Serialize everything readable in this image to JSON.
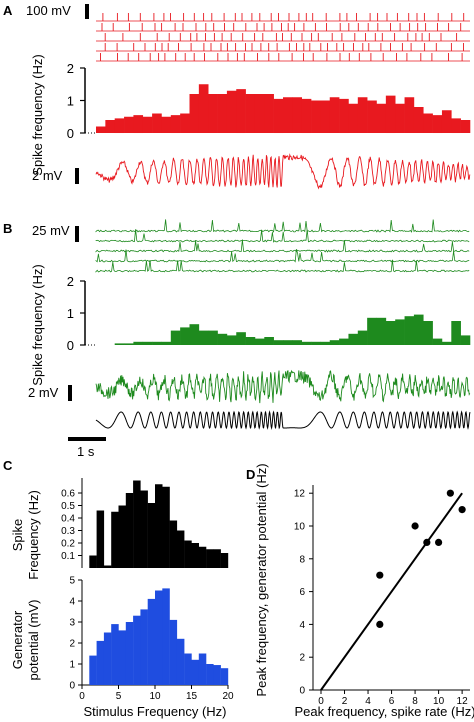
{
  "panel_labels": [
    "A",
    "B",
    "C",
    "D"
  ],
  "chart_data": [
    {
      "panel": "A",
      "type": "bar",
      "scale_bar_top": "100 mV",
      "scale_bar_bottom": "2 mV",
      "ylabel": "Spike frequency (Hz)",
      "yticks": [
        "0",
        "1",
        "2"
      ],
      "ylim": [
        0,
        2
      ],
      "color": "#e8191f",
      "values": [
        0.2,
        0.4,
        0.45,
        0.5,
        0.55,
        0.5,
        0.6,
        0.5,
        0.55,
        0.6,
        1.2,
        1.5,
        1.2,
        1.2,
        1.3,
        1.35,
        1.2,
        1.2,
        1.2,
        1.05,
        1.1,
        1.1,
        1.05,
        1.0,
        1.0,
        1.1,
        1.05,
        0.9,
        1.1,
        1.0,
        0.9,
        1.15,
        0.9,
        1.1,
        0.8,
        0.6,
        0.55,
        0.7,
        0.45,
        0.4
      ]
    },
    {
      "panel": "B",
      "type": "bar",
      "scale_bar_top": "25 mV",
      "scale_bar_bottom": "2 mV",
      "ylabel": "Spike frequency (Hz)",
      "yticks": [
        "0",
        "1",
        "2"
      ],
      "ylim": [
        0,
        2
      ],
      "color": "#1e8a1e",
      "values": [
        0,
        0,
        0.05,
        0.05,
        0.1,
        0.1,
        0.1,
        0.1,
        0.45,
        0.55,
        0.65,
        0.45,
        0.45,
        0.35,
        0.3,
        0.4,
        0.25,
        0.2,
        0.25,
        0.15,
        0.15,
        0.15,
        0.1,
        0.1,
        0.1,
        0.15,
        0.2,
        0.35,
        0.45,
        0.85,
        0.85,
        0.75,
        0.8,
        0.9,
        0.95,
        0.75,
        0.2,
        0.1,
        0.75,
        0.3
      ],
      "time_scale_bar": "1 s"
    },
    {
      "panel": "C-top",
      "type": "bar",
      "color": "#000000",
      "ylabel": "Spike Frequency (Hz)",
      "yticks": [
        "0.1",
        "0.2",
        "0.3",
        "0.4",
        "0.5",
        "0.6"
      ],
      "ylim": [
        0,
        0.72
      ],
      "xlim": [
        0,
        20
      ],
      "x": [
        1.5,
        2.5,
        3.5,
        4.5,
        5.5,
        6.5,
        7.5,
        8.5,
        9.5,
        10.5,
        11.5,
        12.5,
        13.5,
        14.5,
        15.5,
        16.5,
        17.5,
        18.5,
        19.5
      ],
      "values": [
        0.1,
        0.46,
        0.02,
        0.45,
        0.5,
        0.6,
        0.7,
        0.62,
        0.52,
        0.67,
        0.65,
        0.38,
        0.3,
        0.22,
        0.2,
        0.17,
        0.15,
        0.15,
        0.12
      ]
    },
    {
      "panel": "C-bottom",
      "type": "bar",
      "color": "#1f4de0",
      "ylabel": "Generator potential (mV)",
      "xlabel": "Stimulus Frequency (Hz)",
      "yticks": [
        "0",
        "1",
        "2",
        "3",
        "4",
        "5"
      ],
      "xticks": [
        "0",
        "5",
        "10",
        "15",
        "20"
      ],
      "ylim": [
        0,
        5
      ],
      "xlim": [
        0,
        20
      ],
      "x": [
        1.5,
        2.5,
        3.5,
        4.5,
        5.5,
        6.5,
        7.5,
        8.5,
        9.5,
        10.5,
        11.5,
        12.5,
        13.5,
        14.5,
        15.5,
        16.5,
        17.5,
        18.5,
        19.5
      ],
      "values": [
        1.4,
        2.1,
        2.5,
        2.9,
        2.6,
        3.0,
        3.3,
        3.6,
        4.1,
        4.5,
        4.6,
        3.1,
        2.2,
        1.5,
        1.2,
        1.5,
        1.0,
        0.95,
        0.8
      ]
    },
    {
      "panel": "D",
      "type": "scatter",
      "xlabel": "Peak frequency, spike rate (Hz)",
      "ylabel": "Peak frequency, generator potential (Hz)",
      "xticks": [
        "0",
        "2",
        "4",
        "6",
        "8",
        "10",
        "12"
      ],
      "yticks": [
        "0",
        "2",
        "4",
        "6",
        "8",
        "10",
        "12"
      ],
      "xlim": [
        0,
        12.5
      ],
      "ylim": [
        0,
        12.5
      ],
      "points": [
        [
          5,
          7
        ],
        [
          5,
          4
        ],
        [
          8,
          10
        ],
        [
          9,
          9
        ],
        [
          10,
          9
        ],
        [
          11,
          12
        ],
        [
          12,
          11
        ]
      ],
      "fit_line": [
        [
          0,
          0
        ],
        [
          12,
          12
        ]
      ]
    }
  ]
}
